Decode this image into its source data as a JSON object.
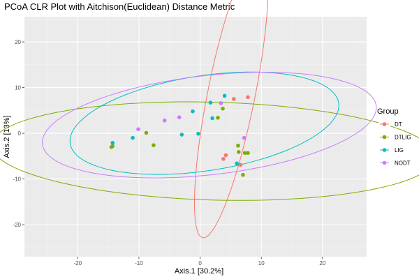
{
  "chart_data": {
    "type": "scatter",
    "title": "PCoA CLR Plot with Aitchison(Euclidean) Distance Metric",
    "xlabel": "Axis.1   [30.2%]",
    "ylabel": "Axis.2   [13%]",
    "xlim": [
      -28.7,
      27.2
    ],
    "ylim": [
      -27.0,
      25.5
    ],
    "x_ticks": [
      -20,
      -10,
      0,
      10,
      20
    ],
    "y_ticks": [
      -20,
      -10,
      0,
      10,
      20
    ],
    "x_tick_labels": [
      "-20",
      "-10",
      "0",
      "10",
      "20"
    ],
    "y_tick_labels": [
      "-20",
      "-10",
      "0",
      "10",
      "20"
    ],
    "grid": true,
    "panel_background": "#ebebeb",
    "legend": {
      "title": "Group",
      "position": "right"
    },
    "series": [
      {
        "name": "DT",
        "color": "#F8766D",
        "points": [
          [
            5.5,
            7.5
          ],
          [
            7.8,
            7.9
          ],
          [
            3.8,
            -5.6
          ],
          [
            4.2,
            -4.8
          ],
          [
            6.6,
            -6.9
          ]
        ],
        "ellipse": {
          "cx": 5.1,
          "cy": 8.5,
          "rx": 31.7,
          "ry": 3.9,
          "angle_deg": 81.6
        }
      },
      {
        "name": "DTLIG",
        "color": "#7CAE00",
        "points": [
          [
            -14.5,
            -3.0
          ],
          [
            -14.3,
            -2.8
          ],
          [
            -8.8,
            0.1
          ],
          [
            -7.6,
            -2.6
          ],
          [
            3.7,
            5.4
          ],
          [
            2.9,
            3.4
          ],
          [
            6.2,
            -2.7
          ],
          [
            6.3,
            -4.1
          ],
          [
            7.3,
            -4.3
          ],
          [
            7.8,
            -4.3
          ],
          [
            7.0,
            -9.1
          ]
        ],
        "ellipse": {
          "cx": 2.2,
          "cy": -3.9,
          "rx": 36.3,
          "ry": 10.7,
          "angle_deg": -2.2
        }
      },
      {
        "name": "LIG",
        "color": "#00BFC4",
        "points": [
          [
            -14.3,
            -2.1
          ],
          [
            -11.0,
            -1.0
          ],
          [
            -3.0,
            -0.3
          ],
          [
            -1.2,
            4.8
          ],
          [
            -0.3,
            -0.1
          ],
          [
            1.7,
            6.7
          ],
          [
            2.0,
            3.3
          ],
          [
            4.0,
            8.2
          ],
          [
            6.0,
            -6.6
          ]
        ],
        "ellipse": {
          "cx": 0.7,
          "cy": 2.2,
          "rx": 22.4,
          "ry": 10.3,
          "angle_deg": 12.8
        }
      },
      {
        "name": "NODT",
        "color": "#C77CFF",
        "points": [
          [
            -10.1,
            0.9
          ],
          [
            -5.8,
            2.8
          ],
          [
            -3.4,
            3.5
          ],
          [
            3.4,
            6.6
          ],
          [
            7.2,
            -1.0
          ]
        ],
        "ellipse": {
          "cx": 1.5,
          "cy": 1.8,
          "rx": 27.6,
          "ry": 10.8,
          "angle_deg": 9.4
        }
      }
    ]
  }
}
